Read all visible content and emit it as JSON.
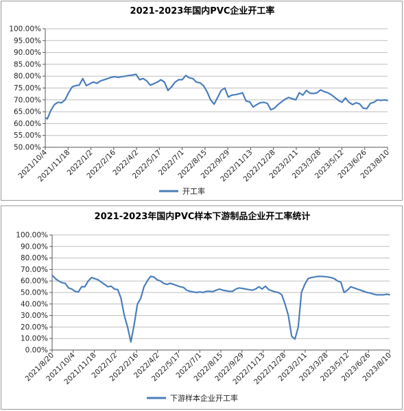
{
  "chart_data": [
    {
      "type": "line",
      "title": "2021-2023年国内PVC企业开工率",
      "xlabel": "",
      "ylabel": "",
      "ylim": [
        50,
        100
      ],
      "yticks": [
        "100.00%",
        "95.00%",
        "90.00%",
        "85.00%",
        "80.00%",
        "75.00%",
        "70.00%",
        "65.00%",
        "60.00%",
        "55.00%",
        "50.00%"
      ],
      "xticks": [
        "2021/10/4",
        "2021/11/18",
        "2022/1/2",
        "2022/2/16",
        "2022/4/2",
        "2022/5/17",
        "2022/7/1",
        "2022/8/15",
        "2022/9/29",
        "2022/11/13",
        "2022/12/28",
        "2023/2/11",
        "2023/3/28",
        "2023/5/12",
        "2023/6/26",
        "2023/8/10"
      ],
      "legend": "bottom-left",
      "color": "#4a7ebb",
      "series": [
        {
          "name": "开工率",
          "x": [
            "2021-10-04",
            "2021-10-08",
            "2021-10-15",
            "2021-10-22",
            "2021-10-29",
            "2021-11-05",
            "2021-11-12",
            "2021-11-19",
            "2021-11-26",
            "2021-12-03",
            "2021-12-10",
            "2021-12-17",
            "2021-12-24",
            "2021-12-31",
            "2022-01-07",
            "2022-01-14",
            "2022-01-21",
            "2022-01-28",
            "2022-02-04",
            "2022-02-11",
            "2022-02-18",
            "2022-02-25",
            "2022-03-04",
            "2022-03-11",
            "2022-03-18",
            "2022-03-25",
            "2022-04-01",
            "2022-04-08",
            "2022-04-15",
            "2022-04-22",
            "2022-04-29",
            "2022-05-06",
            "2022-05-13",
            "2022-05-20",
            "2022-05-27",
            "2022-06-03",
            "2022-06-10",
            "2022-06-17",
            "2022-06-24",
            "2022-07-01",
            "2022-07-08",
            "2022-07-15",
            "2022-07-22",
            "2022-07-29",
            "2022-08-05",
            "2022-08-12",
            "2022-08-19",
            "2022-08-26",
            "2022-09-02",
            "2022-09-09",
            "2022-09-16",
            "2022-09-23",
            "2022-09-30",
            "2022-10-07",
            "2022-10-14",
            "2022-10-21",
            "2022-10-28",
            "2022-11-04",
            "2022-11-11",
            "2022-11-18",
            "2022-11-25",
            "2022-12-02",
            "2022-12-09",
            "2022-12-16",
            "2022-12-23",
            "2022-12-30",
            "2023-01-06",
            "2023-01-13",
            "2023-01-20",
            "2023-01-27",
            "2023-02-03",
            "2023-02-10",
            "2023-02-17",
            "2023-02-24",
            "2023-03-03",
            "2023-03-10",
            "2023-03-17",
            "2023-03-24",
            "2023-03-31",
            "2023-04-07",
            "2023-04-14",
            "2023-04-21",
            "2023-04-28",
            "2023-05-05",
            "2023-05-12",
            "2023-05-19",
            "2023-05-26",
            "2023-06-02",
            "2023-06-09",
            "2023-06-16",
            "2023-06-23",
            "2023-06-30",
            "2023-07-07",
            "2023-07-14",
            "2023-07-21",
            "2023-07-28",
            "2023-08-04",
            "2023-08-11"
          ],
          "y": [
            62.5,
            62.0,
            65.5,
            68.0,
            69.0,
            68.8,
            70.0,
            73.0,
            75.5,
            76.0,
            76.2,
            79.0,
            76.0,
            76.8,
            77.5,
            77.0,
            78.0,
            78.5,
            79.0,
            79.5,
            79.8,
            79.5,
            79.8,
            80.0,
            80.3,
            80.5,
            80.8,
            78.5,
            79.0,
            78.0,
            76.2,
            76.8,
            77.5,
            78.5,
            77.5,
            74.0,
            75.5,
            77.5,
            78.5,
            78.5,
            80.3,
            79.3,
            79.0,
            77.5,
            77.2,
            76.0,
            73.5,
            70.0,
            68.2,
            71.0,
            74.0,
            75.0,
            71.2,
            72.0,
            72.2,
            72.5,
            73.0,
            69.5,
            69.2,
            67.0,
            68.0,
            68.8,
            69.0,
            68.5,
            65.8,
            66.5,
            68.0,
            69.2,
            70.3,
            71.0,
            70.5,
            70.0,
            73.0,
            72.0,
            74.0,
            72.8,
            72.7,
            73.0,
            74.2,
            73.5,
            73.0,
            72.2,
            71.0,
            69.8,
            69.0,
            70.8,
            69.0,
            68.0,
            68.8,
            68.3,
            66.5,
            66.3,
            68.5,
            69.0,
            70.0,
            69.8,
            70.0,
            69.7
          ]
        }
      ]
    },
    {
      "type": "line",
      "title": "2021-2023年国内PVC样本下游制品企业开工率统计",
      "xlabel": "",
      "ylabel": "",
      "ylim": [
        0,
        100
      ],
      "yticks": [
        "100.00%",
        "90.00%",
        "80.00%",
        "70.00%",
        "60.00%",
        "50.00%",
        "40.00%",
        "30.00%",
        "20.00%",
        "10.00%",
        "0.00%"
      ],
      "xticks": [
        "2021/8/20",
        "2021/10/4",
        "2021/11/18",
        "2022/1/2",
        "2022/2/16",
        "2022/4/2",
        "2022/5/17",
        "2022/7/1",
        "2022/8/15",
        "2022/9/29",
        "2022/11/13",
        "2022/12/28",
        "2023/2/11",
        "2023/3/28",
        "2023/5/12",
        "2023/6/26",
        "2023/8/10"
      ],
      "legend": "bottom-left",
      "color": "#4a7ebb",
      "series": [
        {
          "name": "下游样本企业开工率",
          "x": [
            "2021-08-20",
            "2021-08-27",
            "2021-09-03",
            "2021-09-10",
            "2021-09-17",
            "2021-09-24",
            "2021-10-01",
            "2021-10-08",
            "2021-10-15",
            "2021-10-22",
            "2021-10-29",
            "2021-11-05",
            "2021-11-12",
            "2021-11-19",
            "2021-11-26",
            "2021-12-03",
            "2021-12-10",
            "2021-12-17",
            "2021-12-24",
            "2021-12-31",
            "2022-01-07",
            "2022-01-14",
            "2022-01-21",
            "2022-01-28",
            "2022-02-04",
            "2022-02-11",
            "2022-02-18",
            "2022-02-25",
            "2022-03-04",
            "2022-03-11",
            "2022-03-18",
            "2022-03-25",
            "2022-04-01",
            "2022-04-08",
            "2022-04-15",
            "2022-04-22",
            "2022-04-29",
            "2022-05-06",
            "2022-05-13",
            "2022-05-20",
            "2022-05-27",
            "2022-06-03",
            "2022-06-10",
            "2022-06-17",
            "2022-06-24",
            "2022-07-01",
            "2022-07-08",
            "2022-07-15",
            "2022-07-22",
            "2022-07-29",
            "2022-08-05",
            "2022-08-12",
            "2022-08-19",
            "2022-08-26",
            "2022-09-02",
            "2022-09-09",
            "2022-09-16",
            "2022-09-23",
            "2022-09-30",
            "2022-10-07",
            "2022-10-14",
            "2022-10-21",
            "2022-10-28",
            "2022-11-04",
            "2022-11-11",
            "2022-11-18",
            "2022-11-25",
            "2022-12-02",
            "2022-12-09",
            "2022-12-16",
            "2022-12-23",
            "2022-12-30",
            "2023-01-06",
            "2023-01-13",
            "2023-01-20",
            "2023-01-27",
            "2023-02-03",
            "2023-02-10",
            "2023-02-17",
            "2023-02-24",
            "2023-03-03",
            "2023-03-10",
            "2023-03-17",
            "2023-03-24",
            "2023-03-31",
            "2023-04-07",
            "2023-04-14",
            "2023-04-21",
            "2023-04-28",
            "2023-05-05",
            "2023-05-12",
            "2023-05-19",
            "2023-05-26",
            "2023-06-02",
            "2023-06-09",
            "2023-06-16",
            "2023-06-23",
            "2023-06-30",
            "2023-07-07",
            "2023-07-14",
            "2023-07-21",
            "2023-07-28",
            "2023-08-04",
            "2023-08-11"
          ],
          "y": [
            65.0,
            62.0,
            60.0,
            58.5,
            58.0,
            54.0,
            53.0,
            51.0,
            50.5,
            55.0,
            55.0,
            60.0,
            63.0,
            62.0,
            61.0,
            59.0,
            57.0,
            55.0,
            55.5,
            53.0,
            52.5,
            45.0,
            30.0,
            20.0,
            7.0,
            22.0,
            40.0,
            45.0,
            55.0,
            60.0,
            64.0,
            63.5,
            61.0,
            60.0,
            58.0,
            57.0,
            58.0,
            57.0,
            56.0,
            55.0,
            54.5,
            52.0,
            51.0,
            50.5,
            50.0,
            50.5,
            50.0,
            51.0,
            51.0,
            50.8,
            52.0,
            53.0,
            52.0,
            51.5,
            51.0,
            51.0,
            53.0,
            54.0,
            53.5,
            53.0,
            52.5,
            52.0,
            53.0,
            55.0,
            53.0,
            55.5,
            52.5,
            51.5,
            50.5,
            50.0,
            48.0,
            40.0,
            30.0,
            12.0,
            9.5,
            20.0,
            50.0,
            57.0,
            62.0,
            63.0,
            63.5,
            64.0,
            64.0,
            63.8,
            63.5,
            63.0,
            62.0,
            60.0,
            59.0,
            50.0,
            52.0,
            55.0,
            54.0,
            53.0,
            52.0,
            51.0,
            50.0,
            49.5,
            48.5,
            48.0,
            48.0,
            48.0,
            48.5,
            48.0
          ]
        }
      ]
    }
  ]
}
